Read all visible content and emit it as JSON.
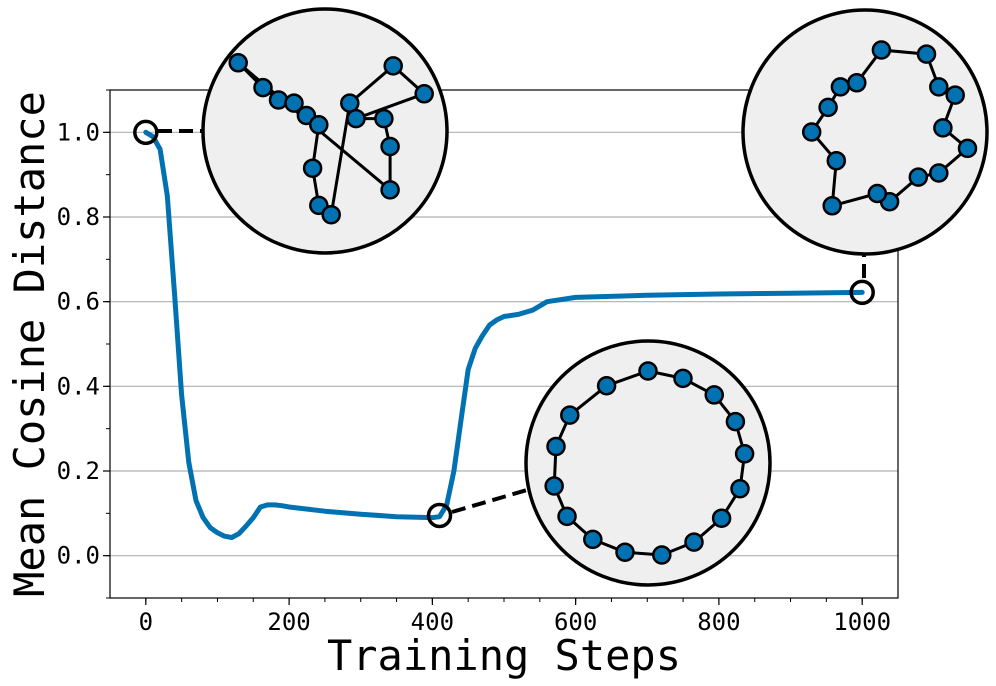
{
  "chart_data": {
    "type": "line",
    "title": "",
    "xlabel": "Training Steps",
    "ylabel": "Mean Cosine Distance",
    "xlim": [
      -50,
      1050
    ],
    "ylim": [
      -0.1,
      1.1
    ],
    "xticks": [
      0,
      200,
      400,
      600,
      800,
      1000
    ],
    "yticks": [
      0.0,
      0.2,
      0.4,
      0.6,
      0.8,
      1.0
    ],
    "xtick_labels": [
      "0",
      "200",
      "400",
      "600",
      "800",
      "1000"
    ],
    "ytick_labels": [
      "0.0",
      "0.2",
      "0.4",
      "0.6",
      "0.8",
      "1.0"
    ],
    "grid": "horizontal",
    "colors": {
      "line": "#0072B2",
      "marker_fill": "#0072B2",
      "inset_bg": "#efefef",
      "grid": "#b0b0b0"
    },
    "series": [
      {
        "x": [
          0,
          10,
          20,
          30,
          40,
          50,
          60,
          70,
          80,
          90,
          100,
          110,
          120,
          130,
          140,
          150,
          160,
          170,
          180,
          190,
          200,
          250,
          300,
          350,
          400,
          410,
          420,
          430,
          440,
          450,
          460,
          470,
          480,
          490,
          500,
          520,
          540,
          560,
          600,
          700,
          800,
          900,
          1000
        ],
        "y": [
          1.0,
          0.99,
          0.96,
          0.85,
          0.62,
          0.38,
          0.22,
          0.13,
          0.09,
          0.066,
          0.054,
          0.046,
          0.043,
          0.052,
          0.07,
          0.09,
          0.115,
          0.12,
          0.12,
          0.118,
          0.115,
          0.105,
          0.098,
          0.092,
          0.09,
          0.092,
          0.12,
          0.2,
          0.32,
          0.44,
          0.49,
          0.52,
          0.545,
          0.557,
          0.565,
          0.57,
          0.58,
          0.6,
          0.61,
          0.615,
          0.618,
          0.62,
          0.622
        ]
      }
    ],
    "annotations": [
      {
        "x": 0,
        "y": 1.0,
        "inset_points": [
          [
            -1.4,
            1.1
          ],
          [
            -1.0,
            0.7
          ],
          [
            -0.75,
            0.5
          ],
          [
            -0.5,
            0.45
          ],
          [
            -0.3,
            0.25
          ],
          [
            -0.1,
            0.1
          ],
          [
            -0.2,
            -0.6
          ],
          [
            -0.1,
            -1.2
          ],
          [
            0.1,
            -1.35
          ],
          [
            0.4,
            0.45
          ],
          [
            1.1,
            1.05
          ],
          [
            1.6,
            0.6
          ],
          [
            0.5,
            0.2
          ],
          [
            0.95,
            0.2
          ],
          [
            1.05,
            -0.25
          ],
          [
            1.05,
            -0.95
          ]
        ]
      },
      {
        "x": 410,
        "y": 0.095,
        "inset_points": [
          [
            0.0,
            1.0
          ],
          [
            0.38,
            0.92
          ],
          [
            0.72,
            0.74
          ],
          [
            0.95,
            0.45
          ],
          [
            1.05,
            0.1
          ],
          [
            1.0,
            -0.28
          ],
          [
            0.8,
            -0.6
          ],
          [
            0.5,
            -0.86
          ],
          [
            0.15,
            -1.0
          ],
          [
            -0.25,
            -0.97
          ],
          [
            -0.6,
            -0.83
          ],
          [
            -0.88,
            -0.58
          ],
          [
            -1.02,
            -0.25
          ],
          [
            -1.0,
            0.18
          ],
          [
            -0.85,
            0.52
          ],
          [
            -0.45,
            0.84
          ]
        ]
      },
      {
        "x": 1000,
        "y": 0.622,
        "inset_points": [
          [
            0.2,
            1.0
          ],
          [
            0.75,
            0.95
          ],
          [
            0.9,
            0.55
          ],
          [
            1.1,
            0.45
          ],
          [
            0.95,
            0.05
          ],
          [
            1.25,
            -0.2
          ],
          [
            0.9,
            -0.5
          ],
          [
            0.65,
            -0.55
          ],
          [
            0.3,
            -0.85
          ],
          [
            0.15,
            -0.75
          ],
          [
            -0.4,
            -0.9
          ],
          [
            -0.35,
            -0.35
          ],
          [
            -0.65,
            0.0
          ],
          [
            -0.45,
            0.3
          ],
          [
            -0.3,
            0.55
          ],
          [
            -0.1,
            0.6
          ]
        ]
      }
    ]
  }
}
